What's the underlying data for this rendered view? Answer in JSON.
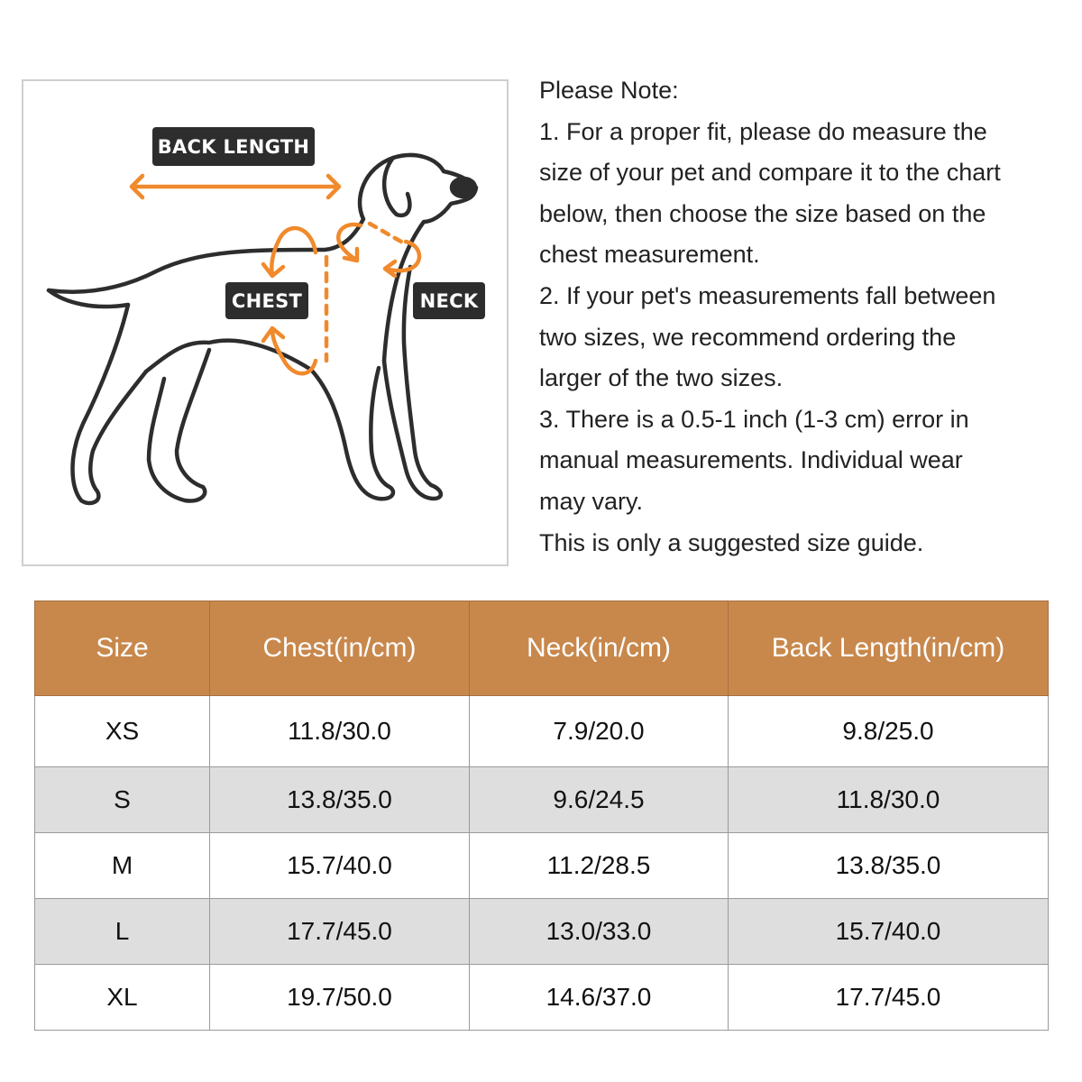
{
  "diagram": {
    "labels": {
      "back_length": "BACK LENGTH",
      "chest": "CHEST",
      "neck": "NECK"
    },
    "colors": {
      "accent": "#f08a2c",
      "outline": "#2d2d2d",
      "label_bg": "#2d2d2d"
    }
  },
  "notes": {
    "lines": [
      "Please Note:",
      "1. For a proper fit, please do measure the",
      "size of your pet and compare it to the chart",
      "below, then choose the size based on the",
      "chest measurement.",
      "2. If your pet's measurements fall between",
      "two sizes, we recommend ordering the",
      "larger of the two sizes.",
      "3. There is a 0.5-1 inch (1-3 cm) error in",
      "manual measurements. Individual wear",
      "may vary.",
      "This is only a suggested size guide."
    ]
  },
  "table": {
    "header_color": "#c8884c",
    "headers": [
      "Size",
      "Chest(in/cm)",
      "Neck(in/cm)",
      "Back Length(in/cm)"
    ],
    "rows": [
      [
        "XS",
        "11.8/30.0",
        "7.9/20.0",
        "9.8/25.0"
      ],
      [
        "S",
        "13.8/35.0",
        "9.6/24.5",
        "11.8/30.0"
      ],
      [
        "M",
        "15.7/40.0",
        "11.2/28.5",
        "13.8/35.0"
      ],
      [
        "L",
        "17.7/45.0",
        "13.0/33.0",
        "15.7/40.0"
      ],
      [
        "XL",
        "19.7/50.0",
        "14.6/37.0",
        "17.7/45.0"
      ]
    ]
  }
}
